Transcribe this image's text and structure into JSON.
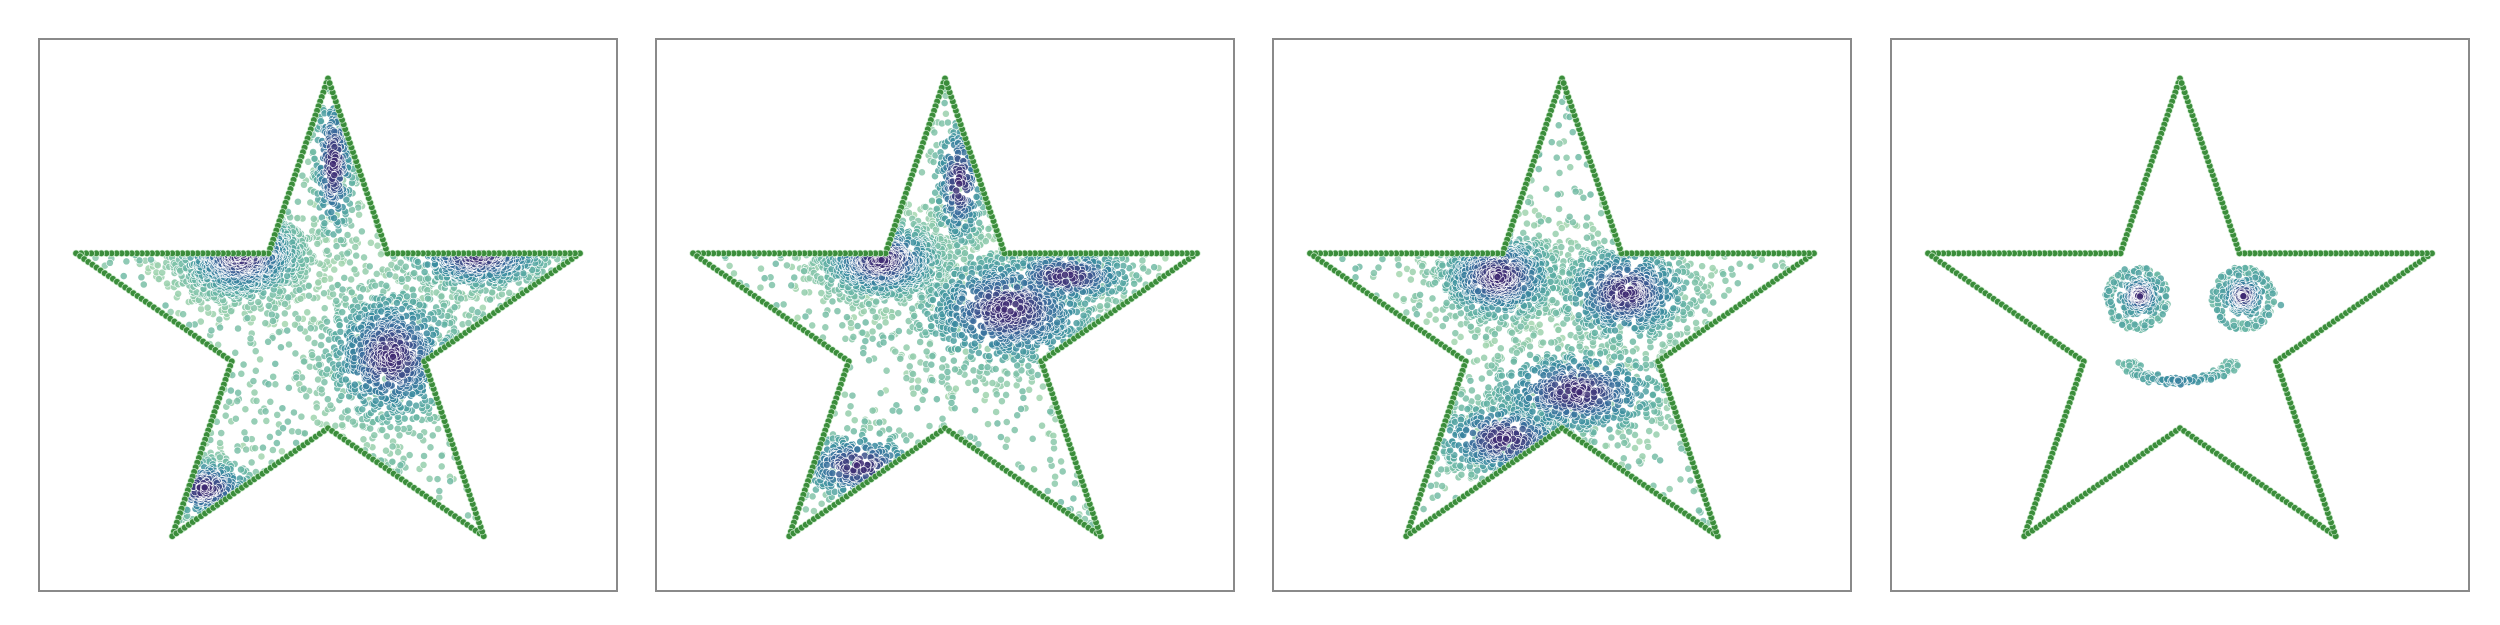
{
  "chart_data": [
    {
      "type": "scatter",
      "panel": 1,
      "title": "",
      "xlabel": "",
      "ylabel": "",
      "axes_visible": false,
      "grid": false,
      "legend": "none",
      "xlim": [
        -1.0,
        1.0
      ],
      "ylim": [
        -1.0,
        1.0
      ],
      "outline": {
        "shape": "five-point star",
        "color": "#3b8d3b",
        "points_per_edge": 38
      },
      "colormap": [
        "#a8d8b0",
        "#63b3a3",
        "#3a8da0",
        "#3a6b9c",
        "#402a72"
      ],
      "clusters": [
        {
          "center": [
            -0.3,
            0.22
          ],
          "spread": [
            0.12,
            0.09
          ],
          "count": 900
        },
        {
          "center": [
            0.22,
            -0.15
          ],
          "spread": [
            0.13,
            0.14
          ],
          "count": 850
        },
        {
          "center": [
            0.52,
            0.22
          ],
          "spread": [
            0.14,
            0.07
          ],
          "count": 450
        },
        {
          "center": [
            0.02,
            0.55
          ],
          "spread": [
            0.04,
            0.16
          ],
          "count": 300
        },
        {
          "center": [
            -0.43,
            -0.63
          ],
          "spread": [
            0.1,
            0.06
          ],
          "count": 250
        }
      ],
      "background_count": 500
    },
    {
      "type": "scatter",
      "panel": 2,
      "title": "",
      "xlabel": "",
      "ylabel": "",
      "axes_visible": false,
      "grid": false,
      "legend": "none",
      "xlim": [
        -1.0,
        1.0
      ],
      "ylim": [
        -1.0,
        1.0
      ],
      "outline": {
        "shape": "five-point star",
        "color": "#3b8d3b",
        "points_per_edge": 38
      },
      "colormap": [
        "#a8d8b0",
        "#63b3a3",
        "#3a8da0",
        "#3a6b9c",
        "#402a72"
      ],
      "clusters": [
        {
          "center": [
            -0.22,
            0.2
          ],
          "spread": [
            0.12,
            0.08
          ],
          "count": 850
        },
        {
          "center": [
            0.22,
            0.02
          ],
          "spread": [
            0.18,
            0.12
          ],
          "count": 900
        },
        {
          "center": [
            0.42,
            0.14
          ],
          "spread": [
            0.14,
            0.06
          ],
          "count": 350
        },
        {
          "center": [
            -0.3,
            -0.55
          ],
          "spread": [
            0.13,
            0.07
          ],
          "count": 250
        },
        {
          "center": [
            0.05,
            0.48
          ],
          "spread": [
            0.05,
            0.14
          ],
          "count": 250
        }
      ],
      "background_count": 450
    },
    {
      "type": "scatter",
      "panel": 3,
      "title": "",
      "xlabel": "",
      "ylabel": "",
      "axes_visible": false,
      "grid": false,
      "legend": "none",
      "xlim": [
        -1.0,
        1.0
      ],
      "ylim": [
        -1.0,
        1.0
      ],
      "outline": {
        "shape": "five-point star",
        "color": "#3b8d3b",
        "points_per_edge": 38
      },
      "colormap": [
        "#a8d8b0",
        "#63b3a3",
        "#3a8da0",
        "#3a6b9c",
        "#402a72"
      ],
      "clusters": [
        {
          "center": [
            -0.22,
            0.14
          ],
          "spread": [
            0.12,
            0.09
          ],
          "count": 800
        },
        {
          "center": [
            0.22,
            0.08
          ],
          "spread": [
            0.13,
            0.1
          ],
          "count": 750
        },
        {
          "center": [
            0.05,
            -0.28
          ],
          "spread": [
            0.17,
            0.09
          ],
          "count": 600
        },
        {
          "center": [
            -0.2,
            -0.45
          ],
          "spread": [
            0.14,
            0.08
          ],
          "count": 400
        }
      ],
      "background_count": 450
    },
    {
      "type": "scatter",
      "panel": 4,
      "title": "",
      "xlabel": "",
      "ylabel": "",
      "axes_visible": false,
      "grid": false,
      "legend": "none",
      "xlim": [
        -1.0,
        1.0
      ],
      "ylim": [
        -1.0,
        1.0
      ],
      "outline": {
        "shape": "five-point star",
        "color": "#3b8d3b",
        "points_per_edge": 38
      },
      "colormap": [
        "#a8d8b0",
        "#63b3a3",
        "#3a8da0",
        "#3a6b9c",
        "#402a72"
      ],
      "face": {
        "eyes": [
          {
            "center": [
              -0.15,
              0.06
            ],
            "radius": 0.1
          },
          {
            "center": [
              0.22,
              0.06
            ],
            "radius": 0.1
          }
        ],
        "pupils": [
          {
            "center": [
              -0.14,
              0.07
            ],
            "spread": 0.03
          },
          {
            "center": [
              0.22,
              0.07
            ],
            "spread": 0.03
          }
        ],
        "smile": {
          "center": [
            0.0,
            -0.25
          ],
          "rx": 0.18,
          "ry": 0.07
        }
      }
    }
  ]
}
